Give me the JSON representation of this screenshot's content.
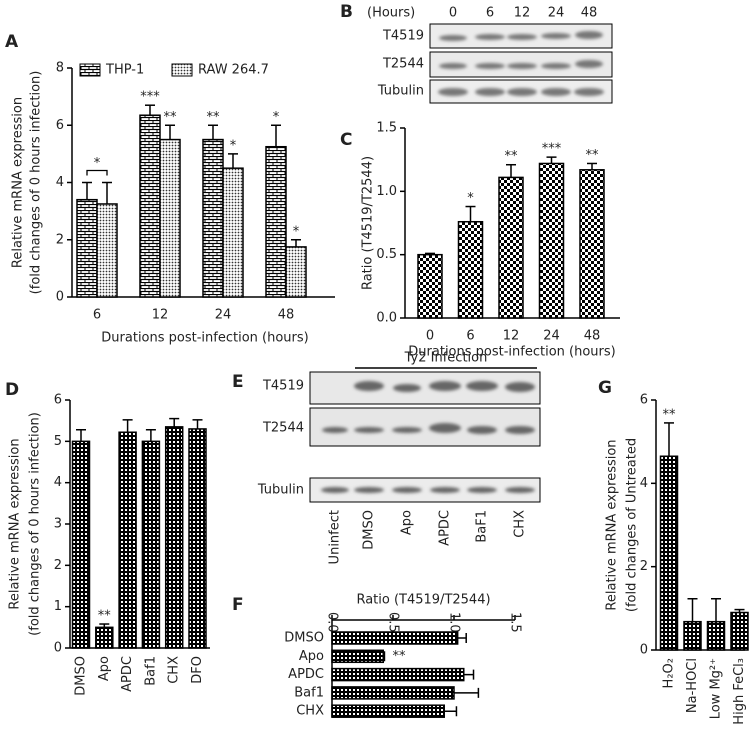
{
  "chart_data": [
    {
      "type": "bar",
      "panel": "A",
      "categories": [
        "6",
        "12",
        "24",
        "48"
      ],
      "series": [
        {
          "name": "THP-1",
          "pattern": "brick",
          "values": [
            3.4,
            6.35,
            5.5,
            5.25
          ],
          "errors": [
            0.6,
            0.35,
            0.5,
            0.75
          ],
          "annotations": [
            null,
            "***",
            "**",
            "*"
          ]
        },
        {
          "name": "RAW 264.7",
          "pattern": "dots",
          "values": [
            3.25,
            5.5,
            4.5,
            1.75
          ],
          "errors": [
            0.75,
            0.5,
            0.5,
            0.25
          ],
          "annotations": [
            null,
            "**",
            "*",
            "*"
          ]
        }
      ],
      "bracket_label": "*",
      "ylabel": [
        "Relative mRNA expression",
        "(fold changes of 0 hours infection)"
      ],
      "xlabel": "Durations post-infection (hours)",
      "ylim": [
        0,
        8
      ],
      "yticks": [
        0,
        2,
        4,
        6,
        8
      ],
      "color": "#000000"
    },
    {
      "type": "bar",
      "panel": "C",
      "categories": [
        "0",
        "6",
        "12",
        "24",
        "48"
      ],
      "series": [
        {
          "pattern": "checker",
          "values": [
            0.5,
            0.76,
            1.11,
            1.22,
            1.17
          ],
          "errors": [
            0.01,
            0.12,
            0.1,
            0.05,
            0.05
          ],
          "annotations": [
            null,
            "*",
            "**",
            "***",
            "**"
          ]
        }
      ],
      "ylabel": [
        "Ratio (T4519/T2544)"
      ],
      "xlabel": "Durations post-infection (hours)",
      "ylim": [
        0,
        1.5
      ],
      "yticks": [
        {
          "value": 0,
          "label": "0.0"
        },
        {
          "value": 0.5,
          "label": "0.5"
        },
        {
          "value": 1,
          "label": "1.0"
        },
        {
          "value": 1.5,
          "label": "1.5"
        }
      ],
      "color": "#000000"
    },
    {
      "type": "bar",
      "panel": "D",
      "categories": [
        "DMSO",
        "Apo",
        "APDC",
        "Baf1",
        "CHX",
        "DFO"
      ],
      "series": [
        {
          "pattern": "grid",
          "values": [
            5.0,
            0.5,
            5.22,
            5.0,
            5.35,
            5.3
          ],
          "errors": [
            0.28,
            0.08,
            0.3,
            0.28,
            0.2,
            0.22
          ],
          "annotations": [
            null,
            "**",
            null,
            null,
            null,
            null
          ]
        }
      ],
      "ylabel": [
        "Relative mRNA expression",
        "(fold changes of 0 hours infection)"
      ],
      "ylim": [
        0,
        6
      ],
      "yticks": [
        0,
        1,
        2,
        3,
        4,
        5,
        6
      ],
      "color": "#000000"
    },
    {
      "type": "hbar",
      "panel": "F",
      "title": "Ratio (T4519/T2544)",
      "categories": [
        "DMSO",
        "Apo",
        "APDC",
        "Baf1",
        "CHX"
      ],
      "series": [
        {
          "pattern": "grid",
          "values": [
            1.03,
            0.42,
            1.08,
            1.0,
            0.92
          ],
          "errors": [
            0.07,
            0.01,
            0.08,
            0.2,
            0.1
          ],
          "annotations": [
            null,
            "**",
            null,
            null,
            null
          ]
        }
      ],
      "xlim": [
        0,
        1.5
      ],
      "xticks": [
        {
          "value": 0,
          "label": "0.0"
        },
        {
          "value": 0.5,
          "label": "0.5"
        },
        {
          "value": 1,
          "label": "1.0"
        },
        {
          "value": 1.5,
          "label": "1.5"
        }
      ],
      "color": "#000000"
    },
    {
      "type": "bar",
      "panel": "G",
      "categories": [
        "H₂O₂",
        "Na-HOCl",
        "Low Mg²⁺",
        "High FeCl₃"
      ],
      "series": [
        {
          "pattern": "grid",
          "values": [
            4.65,
            0.68,
            0.68,
            0.9
          ],
          "errors": [
            0.8,
            0.55,
            0.55,
            0.07
          ],
          "annotations": [
            "**",
            null,
            null,
            null
          ]
        }
      ],
      "ylabel": [
        "Relative mRNA expression",
        "(fold changes of Untreated"
      ],
      "ylim": [
        0,
        6
      ],
      "yticks": [
        0,
        2,
        4,
        6
      ],
      "color": "#000000"
    }
  ],
  "blot_b": {
    "panel": "B",
    "header": "(Hours)",
    "lanes": [
      "0",
      "6",
      "12",
      "24",
      "48"
    ],
    "rows": [
      "T4519",
      "T2544",
      "Tubulin"
    ]
  },
  "blot_e": {
    "panel": "E",
    "header": "Ty2 Infection",
    "lanes": [
      "Uninfect",
      "DMSO",
      "Apo",
      "APDC",
      "BaF1",
      "CHX"
    ],
    "rows": [
      "T4519",
      "T2544",
      "Tubulin"
    ]
  }
}
